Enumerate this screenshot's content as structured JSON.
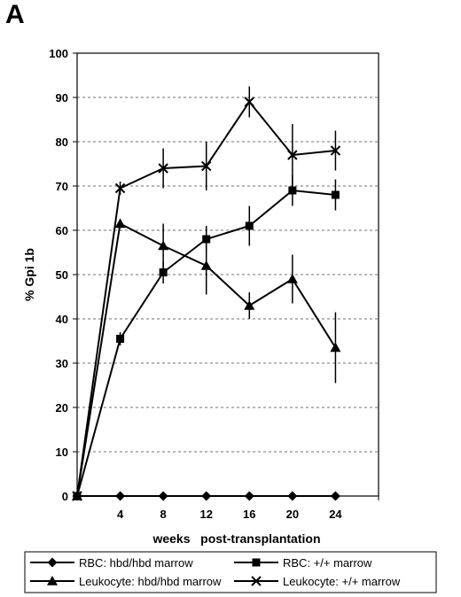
{
  "panel_label": "A",
  "chart_data": {
    "type": "line",
    "title": "",
    "xlabel": "weeks   post-transplantation",
    "ylabel": "% Gpi 1b",
    "x": [
      0,
      4,
      8,
      12,
      16,
      20,
      24
    ],
    "x_tick_labels": [
      "4",
      "8",
      "12",
      "16",
      "20",
      "24"
    ],
    "x_ticks": [
      4,
      8,
      12,
      16,
      20,
      24
    ],
    "xlim": [
      0,
      28
    ],
    "ylim": [
      0,
      100
    ],
    "y_ticks": [
      0,
      10,
      20,
      30,
      40,
      50,
      60,
      70,
      80,
      90,
      100
    ],
    "grid": "horizontal dashed",
    "legend_position": "bottom",
    "series": [
      {
        "name": "RBC: hbd/hbd marrow",
        "marker": "diamond",
        "values": [
          0,
          0,
          0,
          0,
          0,
          0,
          0
        ],
        "errors": [
          0,
          0,
          0,
          0,
          0,
          0,
          0
        ]
      },
      {
        "name": "RBC: +/+ marrow",
        "marker": "square",
        "values": [
          0,
          35.5,
          50.5,
          58,
          61,
          69,
          68
        ],
        "errors": [
          0,
          1.5,
          2.5,
          3,
          4.5,
          3.5,
          3.5
        ]
      },
      {
        "name": "Leukocyte: hbd/hbd marrow",
        "marker": "triangle",
        "values": [
          0,
          61.5,
          56.5,
          52,
          43,
          49,
          33.5
        ],
        "errors": [
          0,
          1,
          5,
          6.5,
          3,
          5.5,
          8
        ]
      },
      {
        "name": "Leukocyte: +/+ marrow",
        "marker": "x",
        "values": [
          0,
          69.5,
          74,
          74.5,
          89,
          77,
          78
        ],
        "errors": [
          0,
          1.5,
          4.5,
          5.5,
          3.5,
          7,
          4.5
        ]
      }
    ]
  }
}
